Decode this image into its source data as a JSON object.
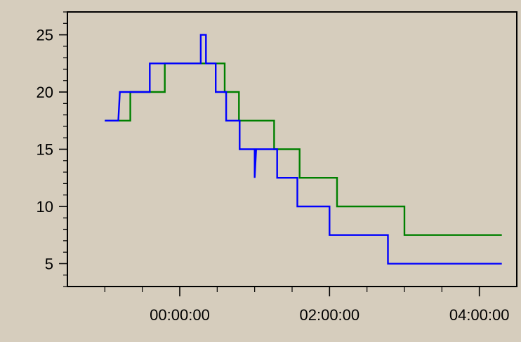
{
  "chart_data": {
    "type": "line",
    "title": "",
    "xlabel": "",
    "ylabel": "",
    "x_unit": "hours relative to 00:00:00",
    "xlim": [
      -1.5,
      4.5
    ],
    "ylim": [
      3,
      27
    ],
    "y_ticks": [
      5,
      10,
      15,
      20,
      25
    ],
    "x_ticks": [
      0,
      2,
      4
    ],
    "x_tick_labels": [
      "00:00:00",
      "02:00:00",
      "04:00:00"
    ],
    "y_tick_labels": [
      "5",
      "10",
      "15",
      "20",
      "25"
    ],
    "grid": false,
    "legend": "none",
    "colors": {
      "background": "#d6cdbd",
      "plot_area": "#d6cdbd",
      "series_blue": "#0000ff",
      "series_green": "#008000"
    },
    "series": [
      {
        "color": "#008000",
        "x": [
          -1.0,
          -0.82,
          -0.82,
          -0.66,
          -0.66,
          -0.2,
          -0.2,
          0.6,
          0.6,
          0.79,
          0.79,
          1.26,
          1.26,
          1.6,
          1.6,
          2.1,
          2.1,
          3.0,
          3.0,
          4.3
        ],
        "y": [
          17.5,
          17.5,
          17.5,
          17.5,
          20,
          20,
          22.5,
          22.5,
          20,
          20,
          17.5,
          17.5,
          15,
          15,
          12.5,
          12.5,
          10,
          10,
          7.5,
          7.5
        ]
      },
      {
        "color": "#0000ff",
        "x": [
          -1.0,
          -0.82,
          -0.8,
          -0.4,
          -0.4,
          0.28,
          0.28,
          0.35,
          0.35,
          0.48,
          0.48,
          0.62,
          0.62,
          0.8,
          0.8,
          1.0,
          1.0,
          1.02,
          1.02,
          1.3,
          1.3,
          1.57,
          1.57,
          2.0,
          2.0,
          2.78,
          2.78,
          4.3
        ],
        "y": [
          17.5,
          17.5,
          20,
          20,
          22.5,
          22.5,
          25,
          25,
          22.5,
          22.5,
          20,
          20,
          17.5,
          17.5,
          15,
          15,
          12.5,
          15,
          15,
          15,
          12.5,
          12.5,
          10,
          10,
          7.5,
          7.5,
          5,
          5
        ]
      }
    ]
  }
}
